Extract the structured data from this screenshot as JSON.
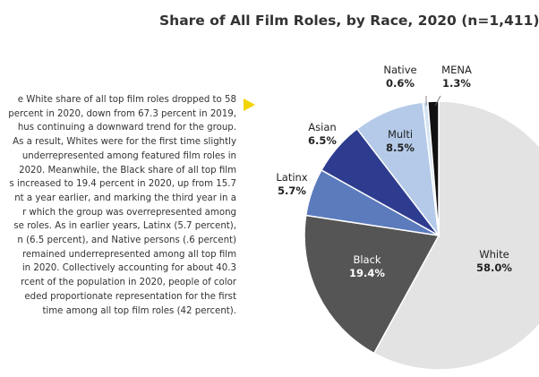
{
  "chart_data": {
    "type": "pie",
    "title": "Share of All Film Roles, by Race, 2020 (n=1,411)",
    "slices": [
      {
        "name": "White",
        "value": 58.0,
        "label": "58.0%",
        "color": "#e3e3e3"
      },
      {
        "name": "Black",
        "value": 19.4,
        "label": "19.4%",
        "color": "#555555"
      },
      {
        "name": "Latinx",
        "value": 5.7,
        "label": "5.7%",
        "color": "#5b7bbd"
      },
      {
        "name": "Asian",
        "value": 6.5,
        "label": "6.5%",
        "color": "#2e3c8f"
      },
      {
        "name": "Multi",
        "value": 8.5,
        "label": "8.5%",
        "color": "#b4cae8"
      },
      {
        "name": "Native",
        "value": 0.6,
        "label": "0.6%",
        "color": "#d3e3f3"
      },
      {
        "name": "MENA",
        "value": 1.3,
        "label": "1.3%",
        "color": "#111111"
      }
    ]
  },
  "body_lines": [
    "e White share of all top film roles dropped to 58",
    "percent in 2020, down from 67.3 percent in 2019,",
    "hus continuing a downward trend for the group.",
    "As a result, Whites were for the first time slightly",
    "underrepresented among featured film roles in",
    "2020. Meanwhile, the Black share of all top film",
    "s increased to 19.4 percent in 2020, up from 15.7",
    "nt a year earlier, and marking the third year in a",
    "r which the group was overrepresented among",
    "se roles. As in earlier years, Latinx (5.7 percent),",
    "n (6.5 percent), and Native persons (.6 percent)",
    "remained underrepresented among all top film",
    "in 2020. Collectively accounting for about 40.3",
    "rcent of the population in 2020, people of color",
    "eded proportionate representation for the first",
    "time among all top film roles (42 percent)."
  ],
  "colors": {
    "accent_arrow": "#f2d400"
  }
}
